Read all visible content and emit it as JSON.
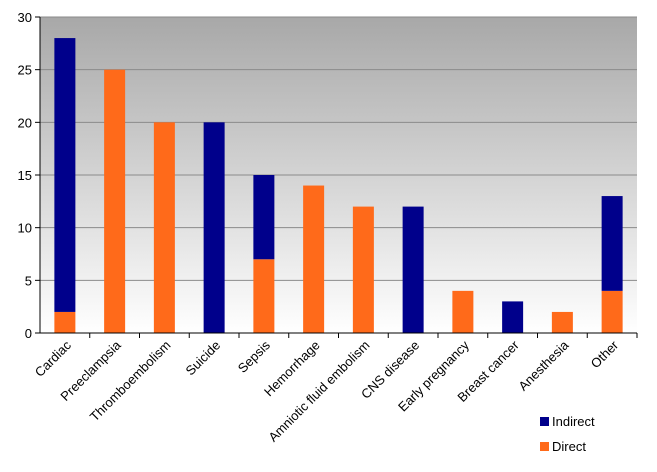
{
  "chart_data": {
    "type": "bar",
    "stacked": true,
    "categories": [
      "Cardiac",
      "Preeclampsia",
      "Thromboembolism",
      "Suicide",
      "Sepsis",
      "Hemorrhage",
      "Amniotic fluid embolism",
      "CNS disease",
      "Early pregnancy",
      "Breast cancer",
      "Anesthesia",
      "Other"
    ],
    "series": [
      {
        "name": "Direct",
        "color": "#ff6a1a",
        "values": [
          2,
          25,
          20,
          0,
          7,
          14,
          12,
          0,
          4,
          0,
          2,
          4
        ]
      },
      {
        "name": "Indirect",
        "color": "#00008b",
        "values": [
          26,
          0,
          0,
          20,
          8,
          0,
          0,
          12,
          0,
          3,
          0,
          9
        ]
      }
    ],
    "yticks": [
      0,
      5,
      10,
      15,
      20,
      25,
      30
    ],
    "ylim": [
      0,
      30
    ],
    "grid": true,
    "legend": {
      "placement": "bottom-right",
      "order": [
        "Indirect",
        "Direct"
      ]
    },
    "title": "",
    "xlabel": "",
    "ylabel": ""
  }
}
